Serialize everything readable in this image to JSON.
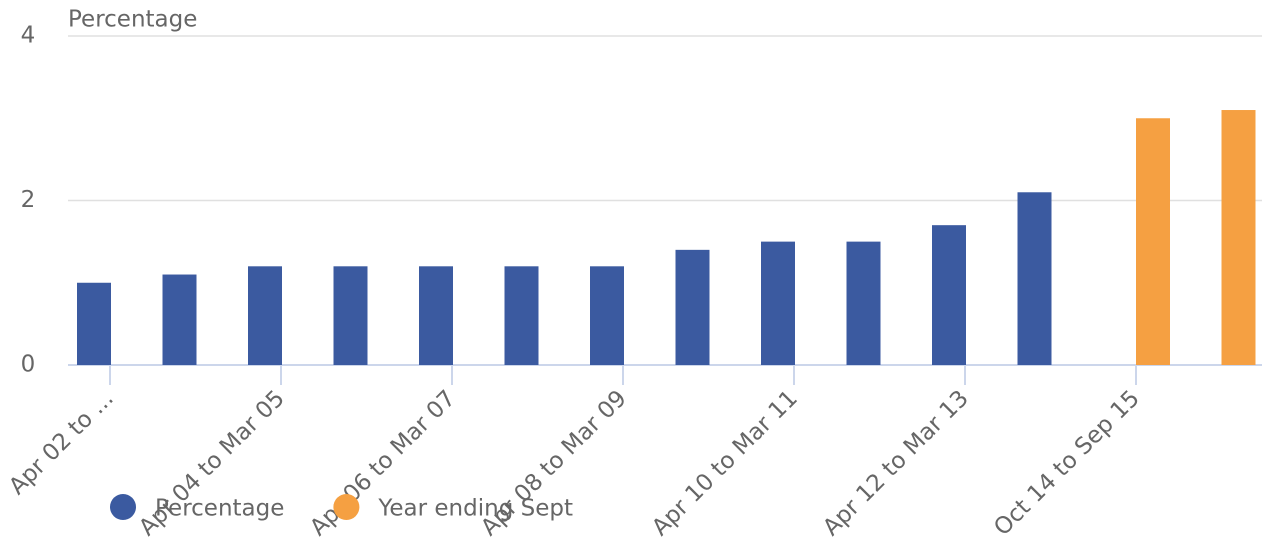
{
  "chart_data": {
    "type": "bar",
    "y_label": "Percentage",
    "categories": [
      "Apr 02 to ...",
      null,
      "Apr 04 to Mar 05",
      null,
      "Apr 06 to Mar 07",
      null,
      "Apr 08 to Mar 09",
      null,
      "Apr 10 to Mar 11",
      null,
      "Apr 12 to Mar 13",
      null,
      "Oct 14 to Sep 15",
      null
    ],
    "series": [
      {
        "name": "Percentage",
        "color": "#3b5aa0",
        "values": [
          1.0,
          1.1,
          1.2,
          1.2,
          1.2,
          1.2,
          1.2,
          1.4,
          1.5,
          1.5,
          1.7,
          2.1,
          null,
          null
        ]
      },
      {
        "name": "Year ending Sept",
        "color": "#f5a042",
        "values": [
          null,
          null,
          null,
          null,
          null,
          null,
          null,
          null,
          null,
          null,
          null,
          null,
          3.0,
          3.1
        ]
      }
    ],
    "ylim": [
      0,
      4
    ],
    "yticks": [
      0,
      2,
      4
    ],
    "grid": true
  }
}
